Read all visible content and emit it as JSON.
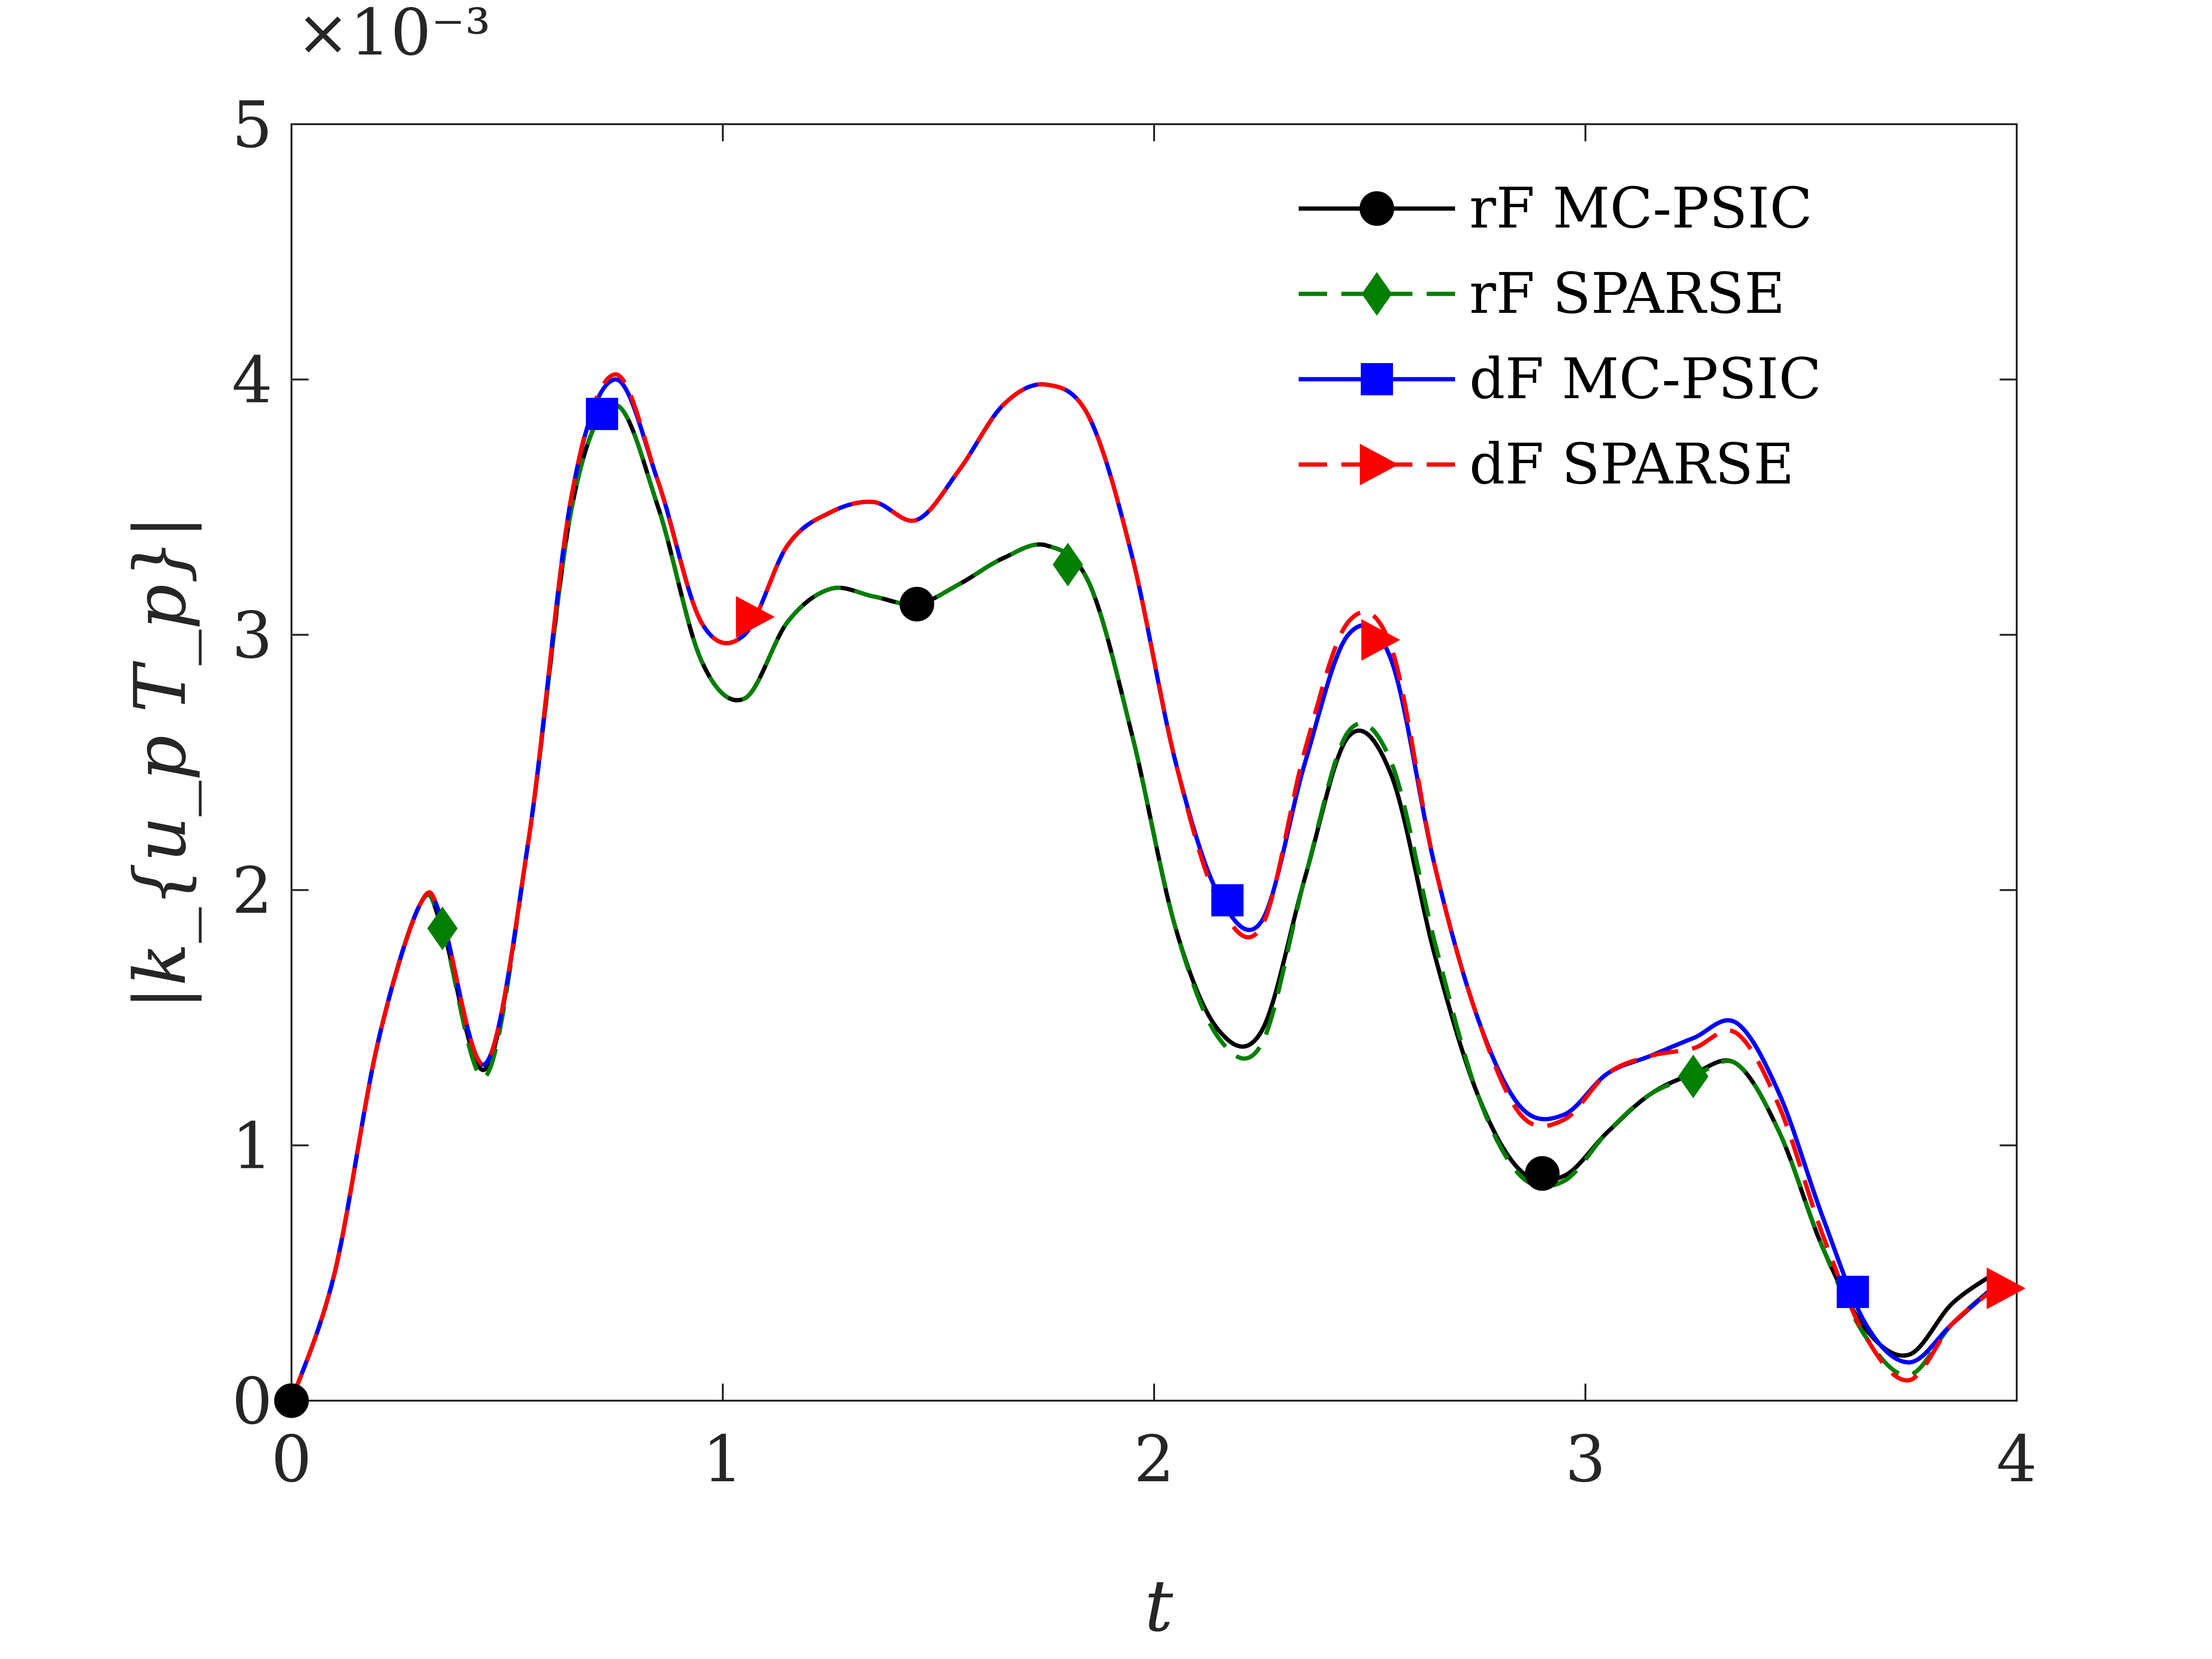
{
  "chart_data": {
    "type": "line",
    "xlabel": "t",
    "ylabel": "|k_{u_p T_p}|",
    "xlim": [
      0,
      4
    ],
    "ylim": [
      0,
      5
    ],
    "y_multiplier": "×10⁻³",
    "x_ticks": [
      "0",
      "1",
      "2",
      "3",
      "4"
    ],
    "y_ticks": [
      "0",
      "1",
      "2",
      "3",
      "4",
      "5"
    ],
    "grid": false,
    "legend_position": "top-right",
    "series": [
      {
        "name": "rF MC-PSIC",
        "color": "#000000",
        "dash": "solid",
        "marker": "circle",
        "markers_at": [
          0,
          1.45,
          2.9
        ],
        "points": [
          [
            0,
            0
          ],
          [
            0.1,
            0.5
          ],
          [
            0.2,
            1.4
          ],
          [
            0.3,
            1.95
          ],
          [
            0.35,
            1.85
          ],
          [
            0.45,
            1.3
          ],
          [
            0.55,
            2.2
          ],
          [
            0.65,
            3.5
          ],
          [
            0.75,
            3.9
          ],
          [
            0.85,
            3.5
          ],
          [
            0.95,
            2.9
          ],
          [
            1.05,
            2.75
          ],
          [
            1.15,
            3.05
          ],
          [
            1.25,
            3.18
          ],
          [
            1.35,
            3.15
          ],
          [
            1.45,
            3.12
          ],
          [
            1.55,
            3.2
          ],
          [
            1.65,
            3.3
          ],
          [
            1.75,
            3.35
          ],
          [
            1.85,
            3.2
          ],
          [
            1.95,
            2.6
          ],
          [
            2.05,
            1.85
          ],
          [
            2.15,
            1.45
          ],
          [
            2.25,
            1.45
          ],
          [
            2.35,
            2.05
          ],
          [
            2.45,
            2.6
          ],
          [
            2.55,
            2.45
          ],
          [
            2.65,
            1.75
          ],
          [
            2.75,
            1.2
          ],
          [
            2.85,
            0.9
          ],
          [
            2.95,
            0.88
          ],
          [
            3.05,
            1.05
          ],
          [
            3.15,
            1.2
          ],
          [
            3.25,
            1.28
          ],
          [
            3.35,
            1.32
          ],
          [
            3.45,
            1.05
          ],
          [
            3.55,
            0.6
          ],
          [
            3.65,
            0.28
          ],
          [
            3.75,
            0.18
          ],
          [
            3.85,
            0.38
          ],
          [
            3.95,
            0.5
          ]
        ]
      },
      {
        "name": "rF SPARSE",
        "color": "#007f00",
        "dash": "dashed",
        "marker": "diamond",
        "markers_at": [
          0.35,
          1.8,
          3.25
        ],
        "points": [
          [
            0,
            0
          ],
          [
            0.1,
            0.5
          ],
          [
            0.2,
            1.4
          ],
          [
            0.3,
            1.95
          ],
          [
            0.35,
            1.85
          ],
          [
            0.45,
            1.27
          ],
          [
            0.55,
            2.2
          ],
          [
            0.65,
            3.5
          ],
          [
            0.75,
            3.9
          ],
          [
            0.85,
            3.5
          ],
          [
            0.95,
            2.9
          ],
          [
            1.05,
            2.75
          ],
          [
            1.15,
            3.05
          ],
          [
            1.25,
            3.18
          ],
          [
            1.35,
            3.15
          ],
          [
            1.45,
            3.12
          ],
          [
            1.55,
            3.2
          ],
          [
            1.65,
            3.3
          ],
          [
            1.75,
            3.35
          ],
          [
            1.85,
            3.2
          ],
          [
            1.95,
            2.6
          ],
          [
            2.05,
            1.85
          ],
          [
            2.15,
            1.42
          ],
          [
            2.25,
            1.4
          ],
          [
            2.35,
            2.05
          ],
          [
            2.45,
            2.62
          ],
          [
            2.55,
            2.5
          ],
          [
            2.65,
            1.8
          ],
          [
            2.75,
            1.2
          ],
          [
            2.85,
            0.88
          ],
          [
            2.95,
            0.86
          ],
          [
            3.05,
            1.05
          ],
          [
            3.15,
            1.2
          ],
          [
            3.25,
            1.27
          ],
          [
            3.35,
            1.32
          ],
          [
            3.45,
            1.05
          ],
          [
            3.55,
            0.6
          ],
          [
            3.65,
            0.25
          ],
          [
            3.75,
            0.1
          ],
          [
            3.85,
            0.3
          ],
          [
            3.95,
            0.45
          ]
        ]
      },
      {
        "name": "dF MC-PSIC",
        "color": "#0000ff",
        "dash": "solid",
        "marker": "square",
        "markers_at": [
          0.72,
          2.17,
          3.62
        ],
        "points": [
          [
            0,
            0
          ],
          [
            0.1,
            0.5
          ],
          [
            0.2,
            1.4
          ],
          [
            0.3,
            1.95
          ],
          [
            0.35,
            1.88
          ],
          [
            0.45,
            1.32
          ],
          [
            0.55,
            2.2
          ],
          [
            0.65,
            3.55
          ],
          [
            0.75,
            4.0
          ],
          [
            0.85,
            3.6
          ],
          [
            0.95,
            3.05
          ],
          [
            1.05,
            3.0
          ],
          [
            1.15,
            3.35
          ],
          [
            1.25,
            3.48
          ],
          [
            1.35,
            3.52
          ],
          [
            1.45,
            3.45
          ],
          [
            1.55,
            3.65
          ],
          [
            1.65,
            3.9
          ],
          [
            1.75,
            3.98
          ],
          [
            1.85,
            3.85
          ],
          [
            1.95,
            3.3
          ],
          [
            2.05,
            2.5
          ],
          [
            2.15,
            1.98
          ],
          [
            2.25,
            1.88
          ],
          [
            2.35,
            2.5
          ],
          [
            2.45,
            3.0
          ],
          [
            2.55,
            2.9
          ],
          [
            2.65,
            2.1
          ],
          [
            2.75,
            1.5
          ],
          [
            2.85,
            1.15
          ],
          [
            2.95,
            1.12
          ],
          [
            3.05,
            1.28
          ],
          [
            3.15,
            1.35
          ],
          [
            3.25,
            1.42
          ],
          [
            3.35,
            1.48
          ],
          [
            3.45,
            1.2
          ],
          [
            3.55,
            0.72
          ],
          [
            3.65,
            0.3
          ],
          [
            3.75,
            0.15
          ],
          [
            3.85,
            0.3
          ],
          [
            3.95,
            0.45
          ]
        ]
      },
      {
        "name": "dF SPARSE",
        "color": "#ff0000",
        "dash": "dashed",
        "marker": "triangle-right",
        "markers_at": [
          1.07,
          2.52,
          3.97
        ],
        "points": [
          [
            0,
            0
          ],
          [
            0.1,
            0.5
          ],
          [
            0.2,
            1.4
          ],
          [
            0.3,
            1.95
          ],
          [
            0.35,
            1.88
          ],
          [
            0.45,
            1.32
          ],
          [
            0.55,
            2.2
          ],
          [
            0.65,
            3.55
          ],
          [
            0.75,
            4.02
          ],
          [
            0.85,
            3.6
          ],
          [
            0.95,
            3.05
          ],
          [
            1.05,
            3.0
          ],
          [
            1.15,
            3.35
          ],
          [
            1.25,
            3.48
          ],
          [
            1.35,
            3.52
          ],
          [
            1.45,
            3.45
          ],
          [
            1.55,
            3.65
          ],
          [
            1.65,
            3.9
          ],
          [
            1.75,
            3.98
          ],
          [
            1.85,
            3.85
          ],
          [
            1.95,
            3.3
          ],
          [
            2.05,
            2.5
          ],
          [
            2.15,
            1.95
          ],
          [
            2.25,
            1.86
          ],
          [
            2.35,
            2.55
          ],
          [
            2.45,
            3.05
          ],
          [
            2.55,
            2.95
          ],
          [
            2.65,
            2.1
          ],
          [
            2.75,
            1.5
          ],
          [
            2.85,
            1.12
          ],
          [
            2.95,
            1.1
          ],
          [
            3.05,
            1.28
          ],
          [
            3.15,
            1.35
          ],
          [
            3.25,
            1.38
          ],
          [
            3.35,
            1.44
          ],
          [
            3.45,
            1.15
          ],
          [
            3.55,
            0.65
          ],
          [
            3.65,
            0.25
          ],
          [
            3.75,
            0.08
          ],
          [
            3.85,
            0.3
          ],
          [
            3.95,
            0.44
          ]
        ]
      }
    ]
  }
}
